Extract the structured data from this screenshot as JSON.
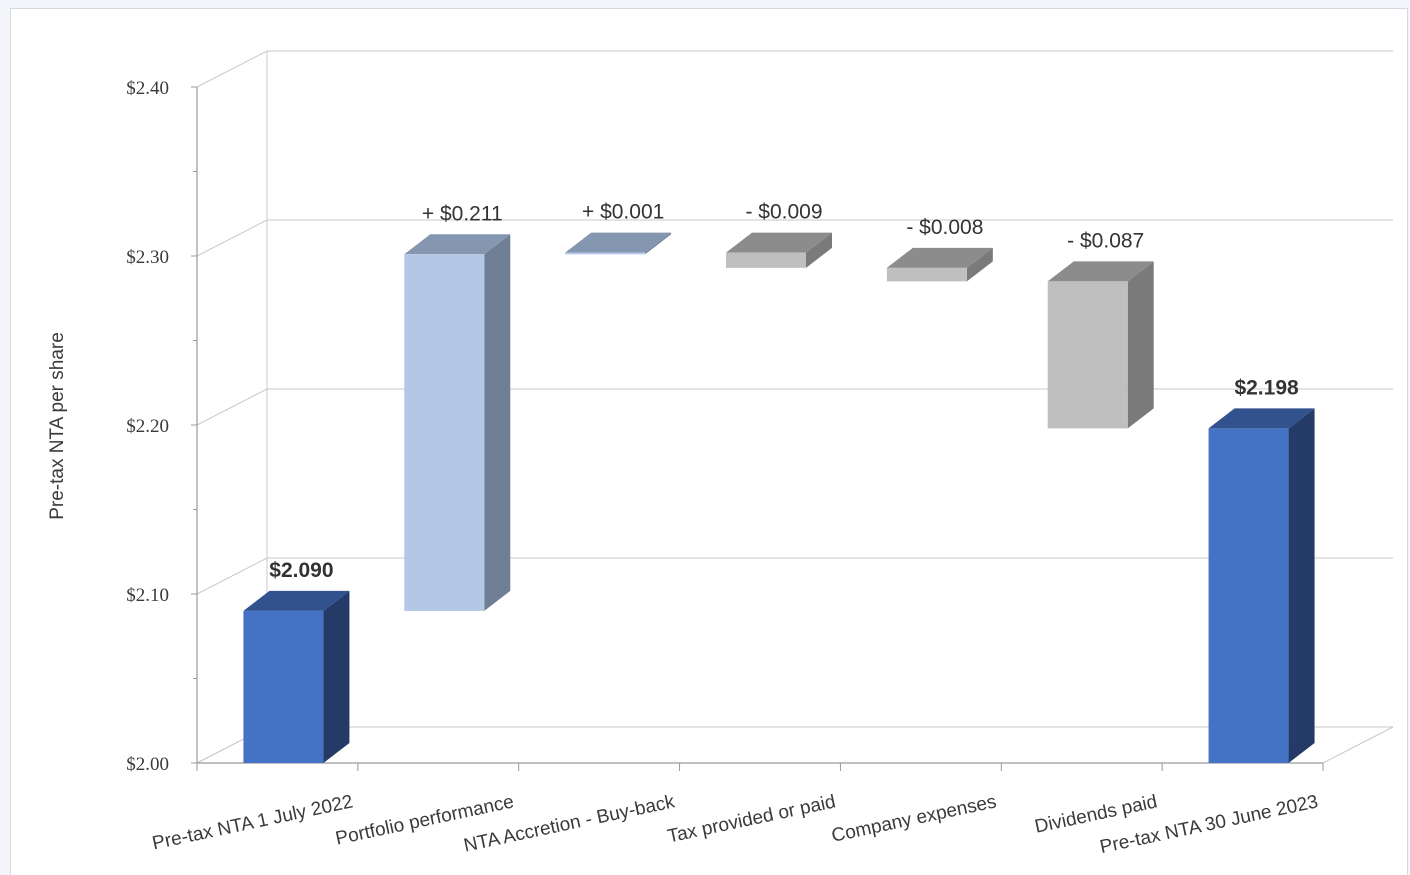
{
  "chart_data": {
    "type": "bar",
    "subtype": "waterfall-3d",
    "title": "",
    "xlabel": "",
    "ylabel": "Pre-tax NTA per share",
    "ylim": [
      2.0,
      2.4
    ],
    "yticks": [
      "$2.00",
      "$2.10",
      "$2.20",
      "$2.30",
      "$2.40"
    ],
    "grid": true,
    "legend": "none",
    "categories": [
      "Pre-tax NTA 1 July 2022",
      "Portfolio performance",
      "NTA Accretion - Buy-back",
      "Tax provided or paid",
      "Company expenses",
      "Dividends paid",
      "Pre-tax NTA 30 June 2023"
    ],
    "values": [
      2.09,
      0.211,
      0.001,
      -0.009,
      -0.008,
      -0.087,
      2.198
    ],
    "value_labels": [
      "$2.090",
      "+ $0.211",
      "+ $0.001",
      "- $0.009",
      "- $0.008",
      "- $0.087",
      "$2.198"
    ],
    "bar_types": [
      "total",
      "increase",
      "increase",
      "decrease",
      "decrease",
      "decrease",
      "total"
    ],
    "colors": {
      "total": "#4472c4",
      "increase": "#b4c7e7",
      "decrease": "#bfbfbf"
    }
  }
}
